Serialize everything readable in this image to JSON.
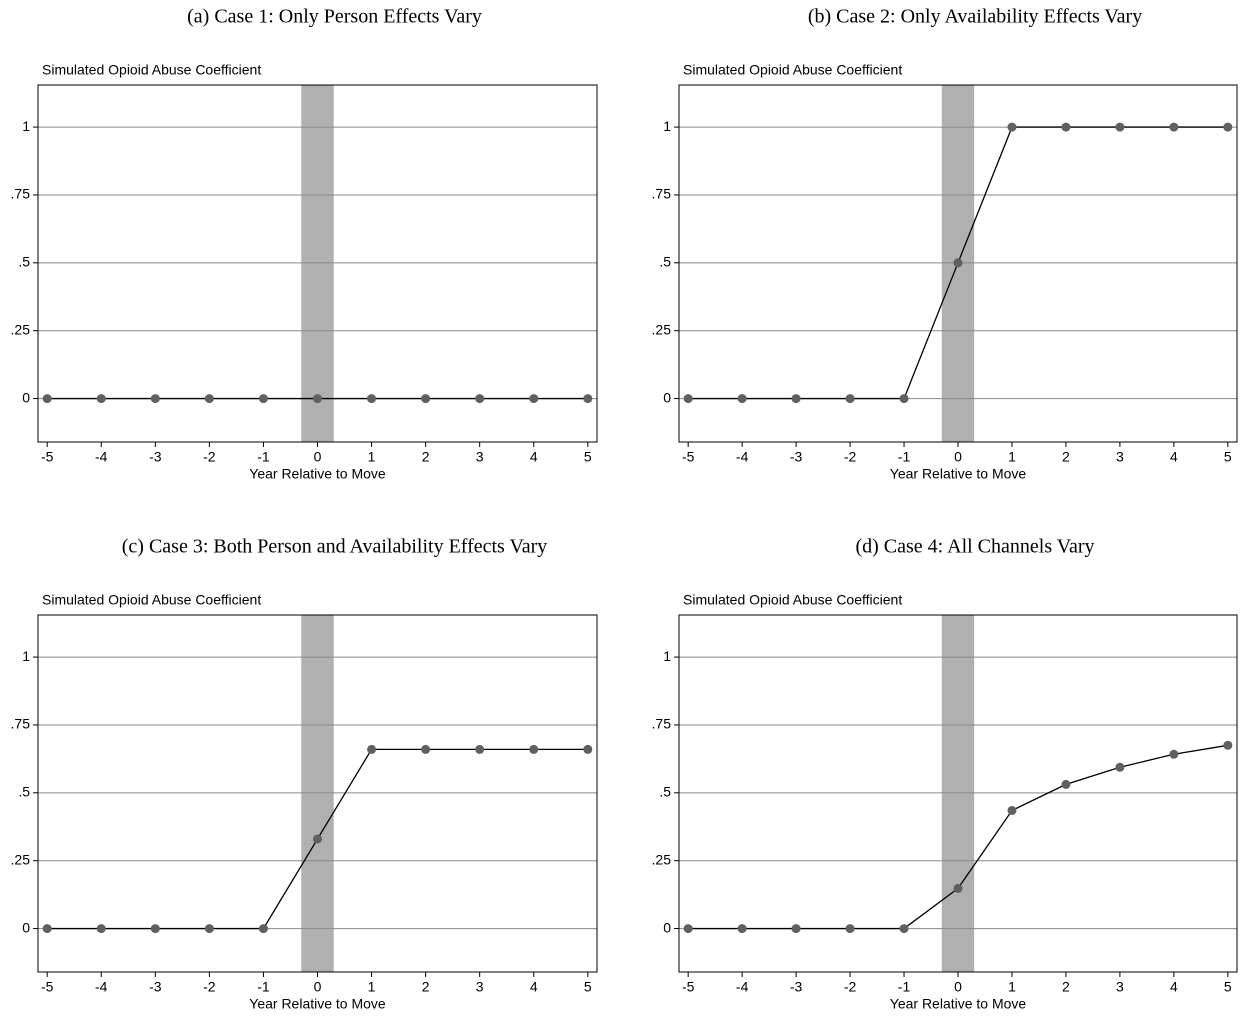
{
  "chart_data": [
    {
      "type": "line",
      "title": "(a) Case 1: Only Person Effects Vary",
      "y_label": "Simulated Opioid Abuse Coefficient",
      "x_label": "Year Relative to Move",
      "x": [
        -5,
        -4,
        -3,
        -2,
        -1,
        0,
        1,
        2,
        3,
        4,
        5
      ],
      "values": [
        0,
        0,
        0,
        0,
        0,
        0,
        0,
        0,
        0,
        0,
        0
      ],
      "color": "#000000",
      "marker_color": "#606060",
      "shaded_x": [
        -0.3,
        0.3
      ],
      "shade_color": "#b0b0b0",
      "xlim": [
        -5.17,
        5.17
      ],
      "ylim": [
        -0.16,
        1.155
      ],
      "xticks": [
        -5,
        -4,
        -3,
        -2,
        -1,
        0,
        1,
        2,
        3,
        4,
        5
      ],
      "yticks": [
        0,
        {
          "value": 0.25,
          "label": ".25"
        },
        {
          "value": 0.5,
          "label": ".5"
        },
        {
          "value": 0.75,
          "label": ".75"
        },
        1
      ],
      "grid": true
    },
    {
      "type": "line",
      "title": "(b) Case 2: Only Availability Effects Vary",
      "y_label": "Simulated Opioid Abuse Coefficient",
      "x_label": "Year Relative to Move",
      "x": [
        -5,
        -4,
        -3,
        -2,
        -1,
        0,
        1,
        2,
        3,
        4,
        5
      ],
      "values": [
        0,
        0,
        0,
        0,
        0,
        0.5,
        1,
        1,
        1,
        1,
        1
      ],
      "color": "#000000",
      "marker_color": "#606060",
      "shaded_x": [
        -0.3,
        0.3
      ],
      "shade_color": "#b0b0b0",
      "xlim": [
        -5.17,
        5.17
      ],
      "ylim": [
        -0.16,
        1.155
      ],
      "xticks": [
        -5,
        -4,
        -3,
        -2,
        -1,
        0,
        1,
        2,
        3,
        4,
        5
      ],
      "yticks": [
        0,
        {
          "value": 0.25,
          "label": ".25"
        },
        {
          "value": 0.5,
          "label": ".5"
        },
        {
          "value": 0.75,
          "label": ".75"
        },
        1
      ],
      "grid": true
    },
    {
      "type": "line",
      "title": "(c) Case 3: Both Person and Availability Effects Vary",
      "y_label": "Simulated Opioid Abuse Coefficient",
      "x_label": "Year Relative to Move",
      "x": [
        -5,
        -4,
        -3,
        -2,
        -1,
        0,
        1,
        2,
        3,
        4,
        5
      ],
      "values": [
        0,
        0,
        0,
        0,
        0,
        0.33,
        0.66,
        0.66,
        0.66,
        0.66,
        0.66
      ],
      "color": "#000000",
      "marker_color": "#606060",
      "shaded_x": [
        -0.3,
        0.3
      ],
      "shade_color": "#b0b0b0",
      "xlim": [
        -5.17,
        5.17
      ],
      "ylim": [
        -0.16,
        1.155
      ],
      "xticks": [
        -5,
        -4,
        -3,
        -2,
        -1,
        0,
        1,
        2,
        3,
        4,
        5
      ],
      "yticks": [
        0,
        {
          "value": 0.25,
          "label": ".25"
        },
        {
          "value": 0.5,
          "label": ".5"
        },
        {
          "value": 0.75,
          "label": ".75"
        },
        1
      ],
      "grid": true
    },
    {
      "type": "line",
      "title": "(d) Case 4: All Channels Vary",
      "y_label": "Simulated Opioid Abuse Coefficient",
      "x_label": "Year Relative to Move",
      "x": [
        -5,
        -4,
        -3,
        -2,
        -1,
        0,
        1,
        2,
        3,
        4,
        5
      ],
      "values": [
        0,
        0,
        0,
        0,
        0,
        0.148,
        0.435,
        0.531,
        0.594,
        0.642,
        0.675
      ],
      "color": "#000000",
      "marker_color": "#606060",
      "shaded_x": [
        -0.3,
        0.3
      ],
      "shade_color": "#b0b0b0",
      "xlim": [
        -5.17,
        5.17
      ],
      "ylim": [
        -0.16,
        1.155
      ],
      "xticks": [
        -5,
        -4,
        -3,
        -2,
        -1,
        0,
        1,
        2,
        3,
        4,
        5
      ],
      "yticks": [
        0,
        {
          "value": 0.25,
          "label": ".25"
        },
        {
          "value": 0.5,
          "label": ".5"
        },
        {
          "value": 0.75,
          "label": ".75"
        },
        1
      ],
      "grid": true
    }
  ]
}
